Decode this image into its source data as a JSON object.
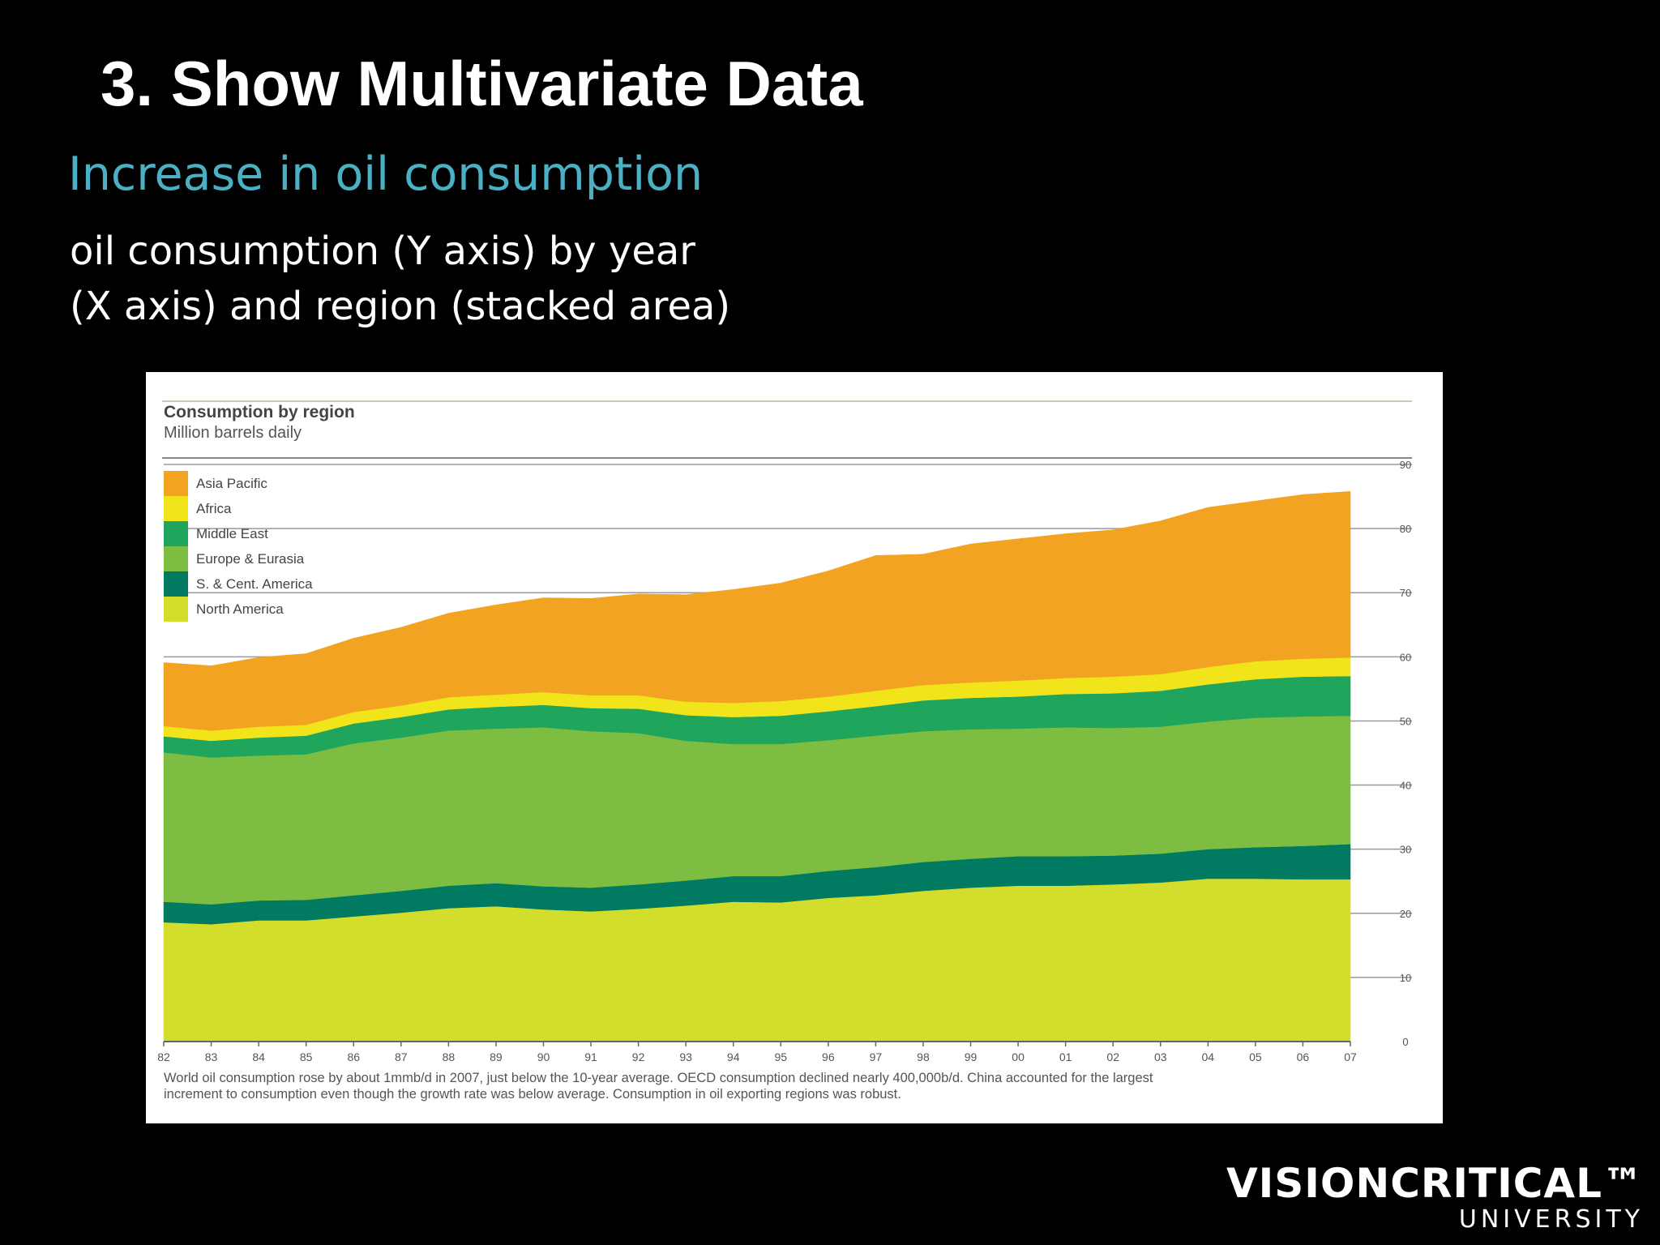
{
  "slide": {
    "title": "3. Show Multivariate Data",
    "subtitle": "Increase in oil consumption",
    "desc_line1": "oil consumption (Y axis) by year",
    "desc_line2": "(X axis) and region (stacked area)"
  },
  "logo": {
    "main": "VISIONCRITICAL™",
    "sub": "UNIVERSITY"
  },
  "chart_data": {
    "type": "area",
    "stacked": true,
    "title": "Consumption by region",
    "subtitle": "Million barrels daily",
    "x": [
      "82",
      "83",
      "84",
      "85",
      "86",
      "87",
      "88",
      "89",
      "90",
      "91",
      "92",
      "93",
      "94",
      "95",
      "96",
      "97",
      "98",
      "99",
      "00",
      "01",
      "02",
      "03",
      "04",
      "05",
      "06",
      "07"
    ],
    "ylim": [
      0,
      90
    ],
    "yticks": [
      0,
      10,
      20,
      30,
      40,
      50,
      60,
      70,
      80,
      90
    ],
    "legend_position": "top-left",
    "grid": true,
    "series": [
      {
        "name": "North America",
        "color": "#d3de2c",
        "values": [
          18.6,
          18.3,
          18.9,
          18.9,
          19.5,
          20.1,
          20.8,
          21.1,
          20.6,
          20.3,
          20.7,
          21.2,
          21.8,
          21.7,
          22.4,
          22.8,
          23.5,
          24.0,
          24.3,
          24.3,
          24.5,
          24.8,
          25.4,
          25.4,
          25.3,
          25.3
        ]
      },
      {
        "name": "S. & Cent. America",
        "color": "#007a60",
        "values": [
          3.2,
          3.1,
          3.1,
          3.2,
          3.3,
          3.4,
          3.5,
          3.6,
          3.6,
          3.7,
          3.8,
          3.9,
          4.0,
          4.1,
          4.2,
          4.4,
          4.5,
          4.5,
          4.6,
          4.6,
          4.5,
          4.5,
          4.6,
          4.9,
          5.2,
          5.5
        ]
      },
      {
        "name": "Europe & Eurasia",
        "color": "#7cbd42",
        "values": [
          23.3,
          22.9,
          22.6,
          22.7,
          23.7,
          23.9,
          24.2,
          24.1,
          24.8,
          24.4,
          23.6,
          21.8,
          20.6,
          20.6,
          20.4,
          20.5,
          20.4,
          20.2,
          19.9,
          20.1,
          19.9,
          19.8,
          19.9,
          20.2,
          20.2,
          20.0
        ]
      },
      {
        "name": "Middle East",
        "color": "#1fa65c",
        "values": [
          2.5,
          2.6,
          2.8,
          2.9,
          3.1,
          3.2,
          3.3,
          3.4,
          3.5,
          3.6,
          3.8,
          4.0,
          4.2,
          4.4,
          4.5,
          4.6,
          4.8,
          4.9,
          5.0,
          5.2,
          5.4,
          5.6,
          5.8,
          6.0,
          6.2,
          6.2
        ]
      },
      {
        "name": "Africa",
        "color": "#f2e41a",
        "values": [
          1.6,
          1.6,
          1.7,
          1.7,
          1.8,
          1.8,
          1.9,
          1.9,
          2.0,
          2.0,
          2.1,
          2.1,
          2.2,
          2.3,
          2.3,
          2.4,
          2.4,
          2.4,
          2.5,
          2.5,
          2.6,
          2.6,
          2.7,
          2.8,
          2.8,
          2.9
        ]
      },
      {
        "name": "Asia Pacific",
        "color": "#f1a321",
        "values": [
          9.9,
          10.1,
          10.8,
          11.1,
          11.5,
          12.2,
          13.1,
          14.0,
          14.7,
          15.1,
          15.8,
          16.7,
          17.7,
          18.4,
          19.6,
          21.1,
          20.4,
          21.6,
          22.1,
          22.5,
          22.9,
          23.9,
          24.9,
          25.0,
          25.6,
          25.9
        ]
      }
    ],
    "footnote_line1": "World oil consumption rose by about 1mmb/d in 2007, just below the 10-year average. OECD consumption declined nearly 400,000b/d. China accounted for the largest",
    "footnote_line2": "increment to consumption even though the growth rate was below average. Consumption in oil exporting regions was robust."
  }
}
